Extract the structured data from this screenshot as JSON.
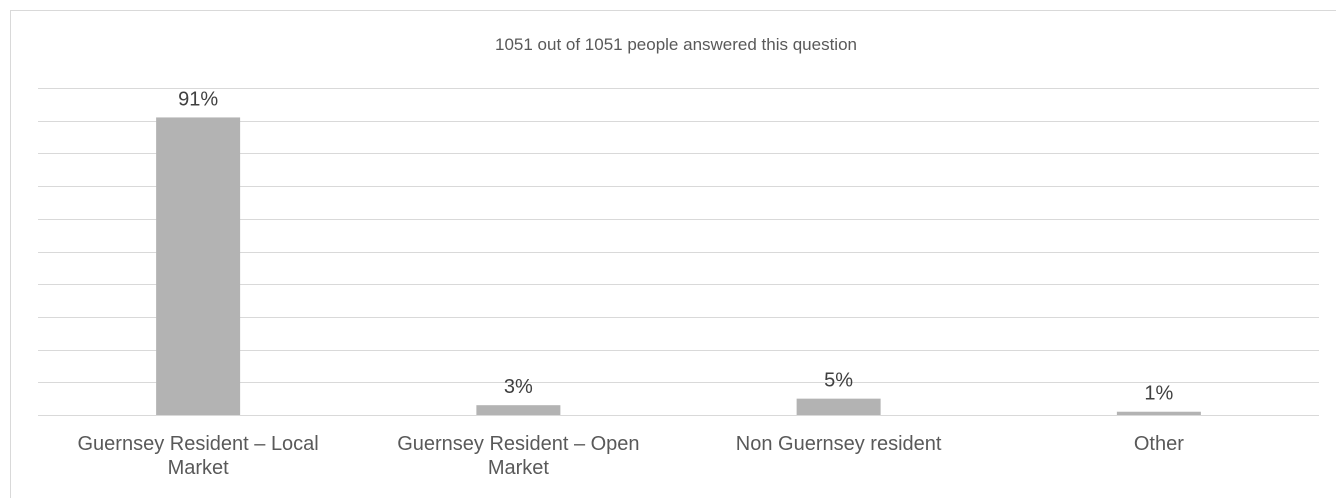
{
  "chart_data": {
    "type": "bar",
    "title": "1051 out of 1051 people answered this question",
    "categories": [
      [
        "Guernsey Resident – Local",
        "Market"
      ],
      [
        "Guernsey Resident – Open",
        "Market"
      ],
      [
        "Non Guernsey resident"
      ],
      [
        "Other"
      ]
    ],
    "values": [
      91,
      3,
      5,
      1
    ],
    "data_labels": [
      "91%",
      "3%",
      "5%",
      "1%"
    ],
    "ylim": [
      0,
      100
    ],
    "grid": true,
    "legend": "none",
    "bar_color": "#b3b3b3",
    "grid_color": "#d9d9d9"
  }
}
